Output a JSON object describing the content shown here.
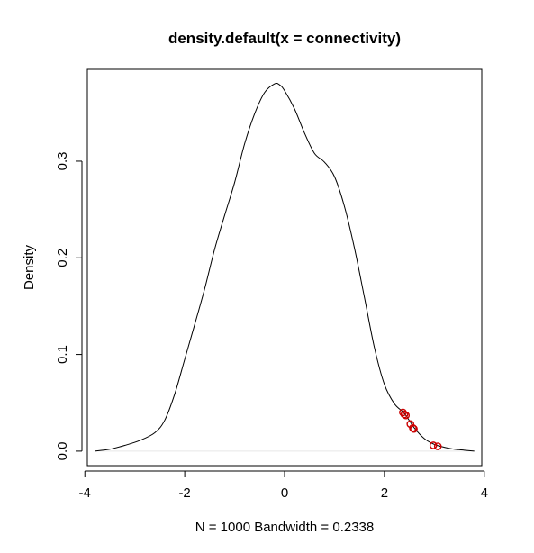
{
  "chart_data": {
    "type": "line",
    "title": "density.default(x = connectivity)",
    "xlabel": "N = 1000   Bandwidth = 0.2338",
    "ylabel": "Density",
    "xlim": [
      -3.95,
      3.95
    ],
    "ylim": [
      -0.015,
      0.395
    ],
    "x_ticks": [
      -4,
      -2,
      0,
      2,
      4
    ],
    "x_tick_labels": [
      "-4",
      "-2",
      "0",
      "2",
      "4"
    ],
    "y_ticks": [
      0.0,
      0.1,
      0.2,
      0.3
    ],
    "y_tick_labels": [
      "0.0",
      "0.1",
      "0.2",
      "0.3"
    ],
    "grid": false,
    "baseline": 0,
    "series": [
      {
        "values": [
          [
            -3.8,
            0.0
          ],
          [
            -3.5,
            0.002
          ],
          [
            -3.2,
            0.006
          ],
          [
            -2.9,
            0.011
          ],
          [
            -2.6,
            0.019
          ],
          [
            -2.4,
            0.032
          ],
          [
            -2.2,
            0.059
          ],
          [
            -2.0,
            0.095
          ],
          [
            -1.8,
            0.131
          ],
          [
            -1.6,
            0.168
          ],
          [
            -1.4,
            0.209
          ],
          [
            -1.2,
            0.244
          ],
          [
            -1.0,
            0.278
          ],
          [
            -0.8,
            0.318
          ],
          [
            -0.6,
            0.349
          ],
          [
            -0.4,
            0.371
          ],
          [
            -0.2,
            0.38
          ],
          [
            -0.1,
            0.379
          ],
          [
            0.0,
            0.373
          ],
          [
            0.2,
            0.354
          ],
          [
            0.4,
            0.329
          ],
          [
            0.6,
            0.308
          ],
          [
            0.8,
            0.299
          ],
          [
            1.0,
            0.284
          ],
          [
            1.2,
            0.253
          ],
          [
            1.4,
            0.21
          ],
          [
            1.6,
            0.159
          ],
          [
            1.8,
            0.107
          ],
          [
            2.0,
            0.069
          ],
          [
            2.2,
            0.049
          ],
          [
            2.4,
            0.039
          ],
          [
            2.6,
            0.024
          ],
          [
            2.8,
            0.013
          ],
          [
            3.0,
            0.007
          ],
          [
            3.2,
            0.004
          ],
          [
            3.4,
            0.002
          ],
          [
            3.6,
            0.001
          ],
          [
            3.8,
            0.0
          ]
        ],
        "color": "#000000"
      },
      {
        "type": "scatter",
        "marker": "open-circle",
        "color": "#cc0000",
        "values": [
          [
            2.37,
            0.04
          ],
          [
            2.4,
            0.038
          ],
          [
            2.43,
            0.037
          ],
          [
            2.52,
            0.028
          ],
          [
            2.57,
            0.024
          ],
          [
            2.59,
            0.023
          ],
          [
            2.98,
            0.006
          ],
          [
            3.07,
            0.005
          ]
        ]
      }
    ]
  }
}
